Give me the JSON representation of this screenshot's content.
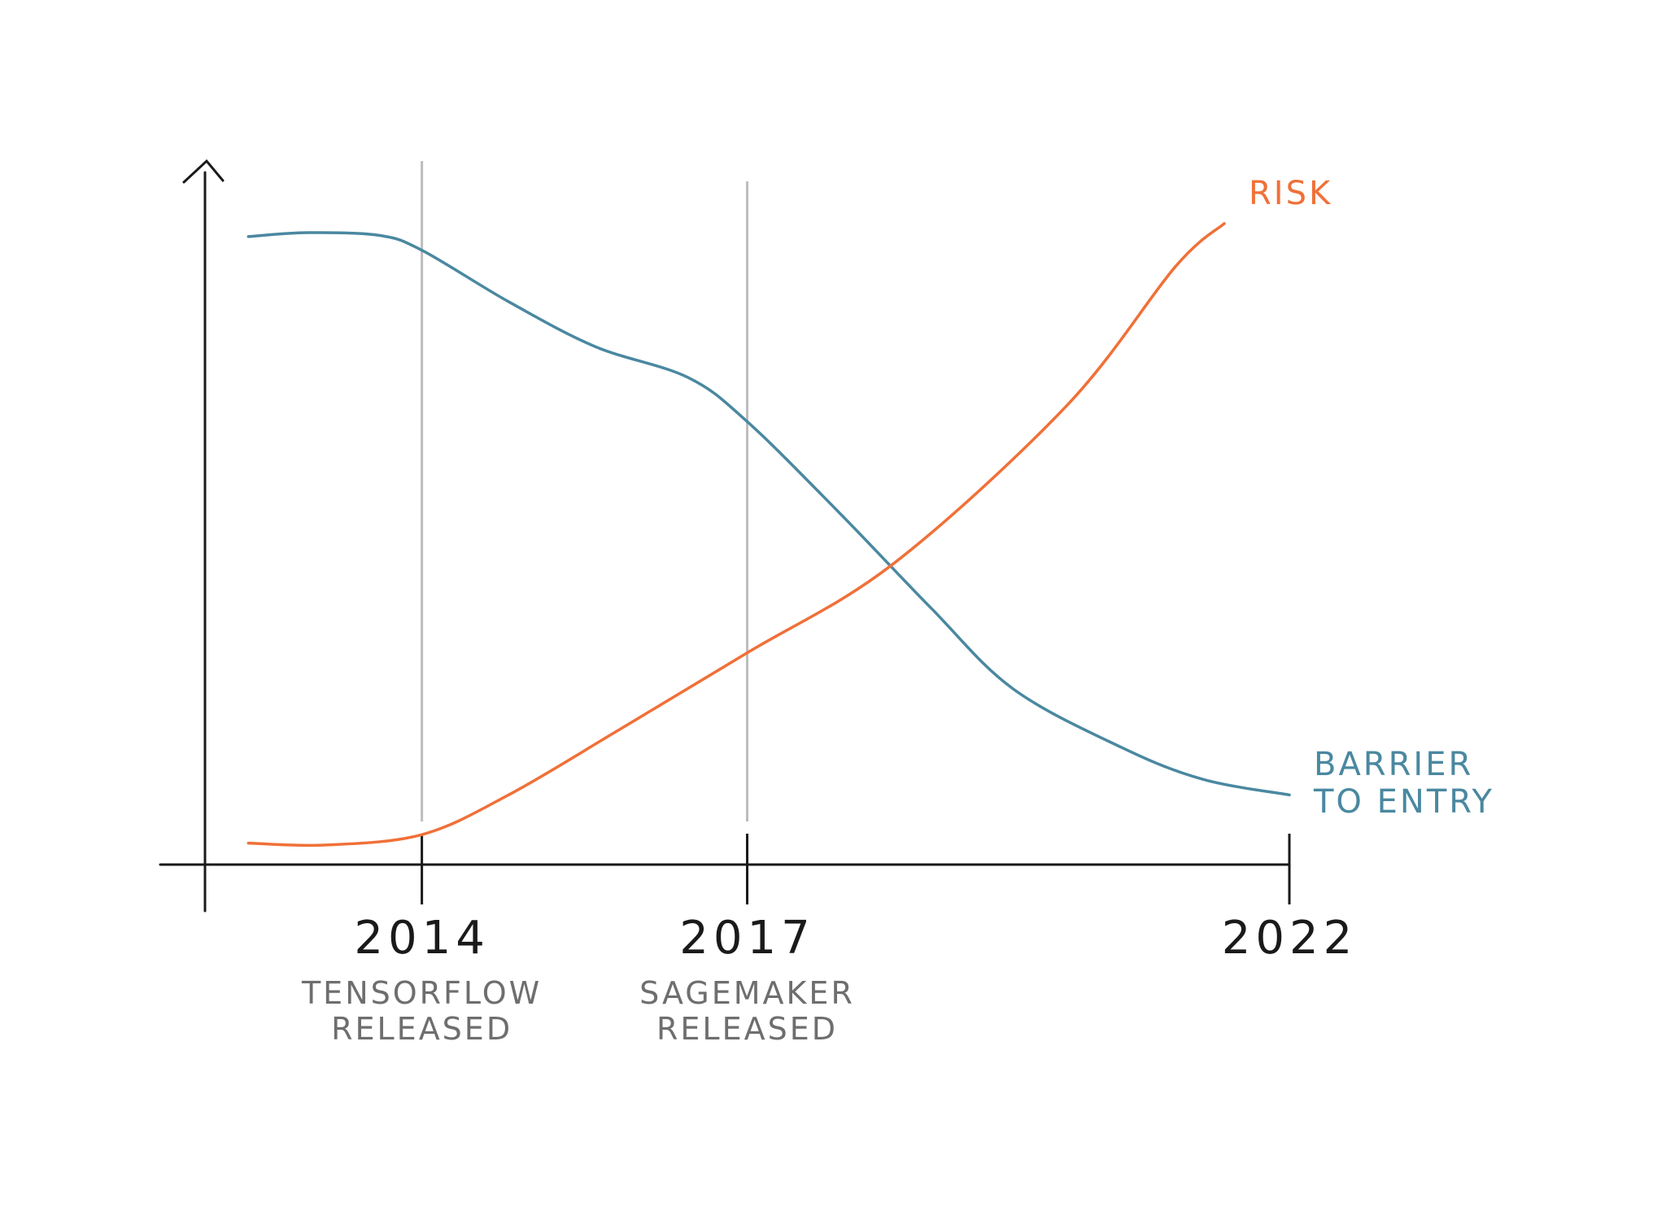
{
  "chart_data": {
    "type": "line",
    "xlim": [
      2012,
      2022
    ],
    "xticks": [
      2014,
      2017,
      2022
    ],
    "ylim": [
      0,
      100
    ],
    "series": [
      {
        "name": "BARRIER TO ENTRY",
        "color": "#4a88a0",
        "x": [
          2012.4,
          2012.95,
          2013.6,
          2014,
          2014.8,
          2015.6,
          2016.45,
          2017,
          2017.85,
          2018.7,
          2019.45,
          2020.45,
          2021.2,
          2022
        ],
        "values": [
          96.4,
          97,
          96.6,
          94.3,
          86.4,
          79.5,
          74.8,
          68,
          54,
          39.3,
          27,
          18,
          13.1,
          10.7
        ]
      },
      {
        "name": "RISK",
        "color": "#f07038",
        "x": [
          2012.4,
          2013.1,
          2014,
          2014.8,
          2015.8,
          2017,
          2018.35,
          2019.95,
          2020.95,
          2021.4
        ],
        "values": [
          3.3,
          3,
          4.6,
          10.7,
          20.5,
          32.5,
          46.2,
          70.5,
          91.8,
          98.4
        ]
      }
    ],
    "events": [
      {
        "x": 2014,
        "label": "TENSORFLOW RELEASED"
      },
      {
        "x": 2017,
        "label": "SAGEMAKER RELEASED"
      }
    ]
  }
}
